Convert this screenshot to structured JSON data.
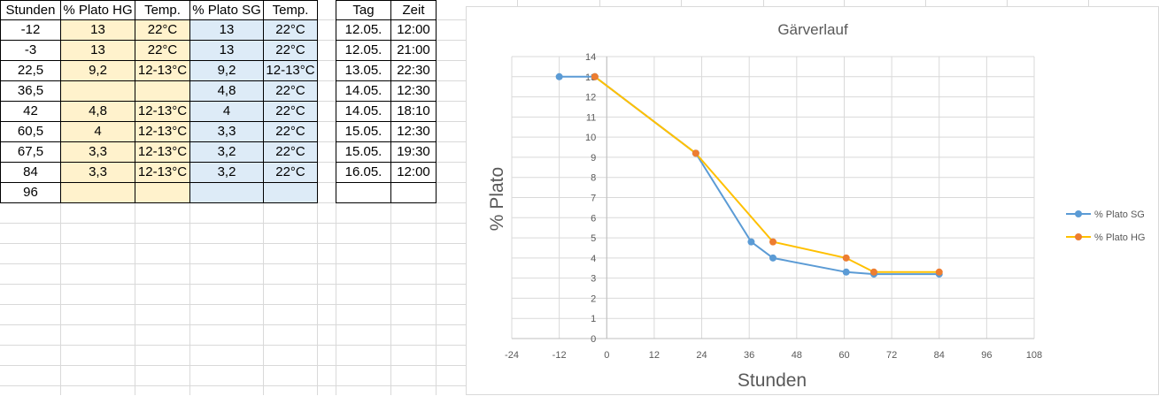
{
  "table1": {
    "headers": [
      "Stunden",
      "% Plato HG",
      "Temp.",
      "% Plato SG",
      "Temp."
    ],
    "rows": [
      [
        "-12",
        "13",
        "22°C",
        "13",
        "22°C"
      ],
      [
        "-3",
        "13",
        "22°C",
        "13",
        "22°C"
      ],
      [
        "22,5",
        "9,2",
        "12-13°C",
        "9,2",
        "12-13°C"
      ],
      [
        "36,5",
        "",
        "",
        "4,8",
        "22°C"
      ],
      [
        "42",
        "4,8",
        "12-13°C",
        "4",
        "22°C"
      ],
      [
        "60,5",
        "4",
        "12-13°C",
        "3,3",
        "22°C"
      ],
      [
        "67,5",
        "3,3",
        "12-13°C",
        "3,2",
        "22°C"
      ],
      [
        "84",
        "3,3",
        "12-13°C",
        "3,2",
        "22°C"
      ],
      [
        "96",
        "",
        "",
        "",
        ""
      ]
    ]
  },
  "table2": {
    "headers": [
      "Tag",
      "Zeit"
    ],
    "rows": [
      [
        "12.05.",
        "12:00"
      ],
      [
        "12.05.",
        "21:00"
      ],
      [
        "13.05.",
        "22:30"
      ],
      [
        "14.05.",
        "12:30"
      ],
      [
        "14.05.",
        "18:10"
      ],
      [
        "15.05.",
        "12:30"
      ],
      [
        "15.05.",
        "19:30"
      ],
      [
        "16.05.",
        "12:00"
      ],
      [
        "",
        ""
      ]
    ]
  },
  "colors": {
    "hg_fill": "#fff2cc",
    "sg_fill": "#ddebf7",
    "series_sg": "#5b9bd5",
    "series_hg": "#ffc000",
    "series_hg_marker": "#ed7d31"
  },
  "chart_data": {
    "type": "scatter",
    "title": "Gärverlauf",
    "xlabel": "Stunden",
    "ylabel": "% Plato",
    "xlim": [
      -24,
      108
    ],
    "ylim": [
      0,
      14
    ],
    "xticks": [
      -24,
      -12,
      0,
      12,
      24,
      36,
      48,
      60,
      72,
      84,
      96,
      108
    ],
    "yticks": [
      0,
      1,
      2,
      3,
      4,
      5,
      6,
      7,
      8,
      9,
      10,
      11,
      12,
      13,
      14
    ],
    "grid": true,
    "legend": "right",
    "series": [
      {
        "name": "% Plato SG",
        "points": [
          [
            -12,
            13
          ],
          [
            -3,
            13
          ],
          [
            22.5,
            9.2
          ],
          [
            36.5,
            4.8
          ],
          [
            42,
            4
          ],
          [
            60.5,
            3.3
          ],
          [
            67.5,
            3.2
          ],
          [
            84,
            3.2
          ]
        ]
      },
      {
        "name": "% Plato HG",
        "points": [
          [
            -3,
            13
          ],
          [
            22.5,
            9.2
          ],
          [
            42,
            4.8
          ],
          [
            60.5,
            4
          ],
          [
            67.5,
            3.3
          ],
          [
            84,
            3.3
          ]
        ]
      }
    ]
  }
}
